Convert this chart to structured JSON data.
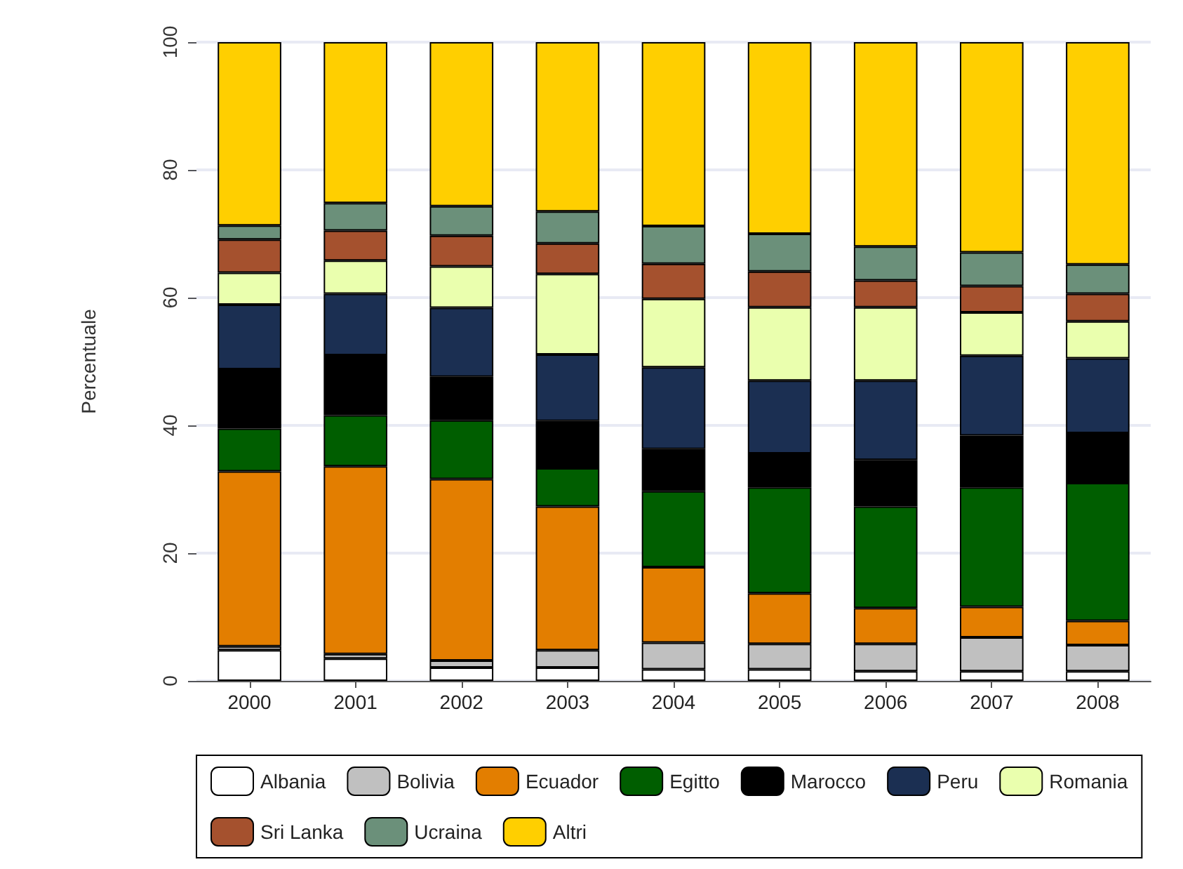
{
  "chart_data": {
    "type": "bar",
    "stacked": true,
    "ylabel": "Percentuale",
    "categories": [
      "2000",
      "2001",
      "2002",
      "2003",
      "2004",
      "2005",
      "2006",
      "2007",
      "2008"
    ],
    "ylim": [
      0,
      100
    ],
    "yticks": [
      0,
      20,
      40,
      60,
      80,
      100
    ],
    "grid": "y",
    "legend": "bottom",
    "series": [
      {
        "name": "Albania",
        "color": "#ffffff",
        "values": [
          4.8,
          3.5,
          2.1,
          2.1,
          1.8,
          1.8,
          1.5,
          1.5,
          1.5
        ]
      },
      {
        "name": "Bolivia",
        "color": "#c0c0c0",
        "values": [
          0.6,
          0.7,
          1.1,
          2.7,
          4.2,
          4.0,
          4.3,
          5.3,
          4.1
        ]
      },
      {
        "name": "Ecuador",
        "color": "#e37e00",
        "values": [
          27.4,
          29.4,
          28.4,
          22.5,
          11.8,
          7.9,
          5.6,
          4.8,
          3.8
        ]
      },
      {
        "name": "Egitto",
        "color": "#005e00",
        "values": [
          6.7,
          8.0,
          9.2,
          6.0,
          11.9,
          16.6,
          15.9,
          18.7,
          21.6
        ]
      },
      {
        "name": "Marocco",
        "color": "#000000",
        "values": [
          9.3,
          9.4,
          6.8,
          7.4,
          6.6,
          5.3,
          7.3,
          8.1,
          7.8
        ]
      },
      {
        "name": "Peru",
        "color": "#1b2f52",
        "values": [
          10.1,
          9.6,
          10.8,
          10.4,
          12.8,
          11.4,
          12.4,
          12.5,
          11.7
        ]
      },
      {
        "name": "Romania",
        "color": "#eaffae",
        "values": [
          5.0,
          5.2,
          6.5,
          12.6,
          10.7,
          11.5,
          11.5,
          6.8,
          5.8
        ]
      },
      {
        "name": "Sri Lanka",
        "color": "#a5512e",
        "values": [
          5.2,
          4.7,
          4.8,
          4.8,
          5.5,
          5.6,
          4.2,
          4.1,
          4.3
        ]
      },
      {
        "name": "Ucraina",
        "color": "#6b907a",
        "values": [
          2.2,
          4.3,
          4.6,
          5.0,
          5.9,
          5.9,
          5.3,
          5.3,
          4.6
        ]
      },
      {
        "name": "Altri",
        "color": "#ffcf00",
        "values": [
          28.7,
          25.2,
          25.7,
          26.5,
          28.8,
          30.0,
          32.0,
          32.9,
          34.8
        ]
      }
    ]
  }
}
